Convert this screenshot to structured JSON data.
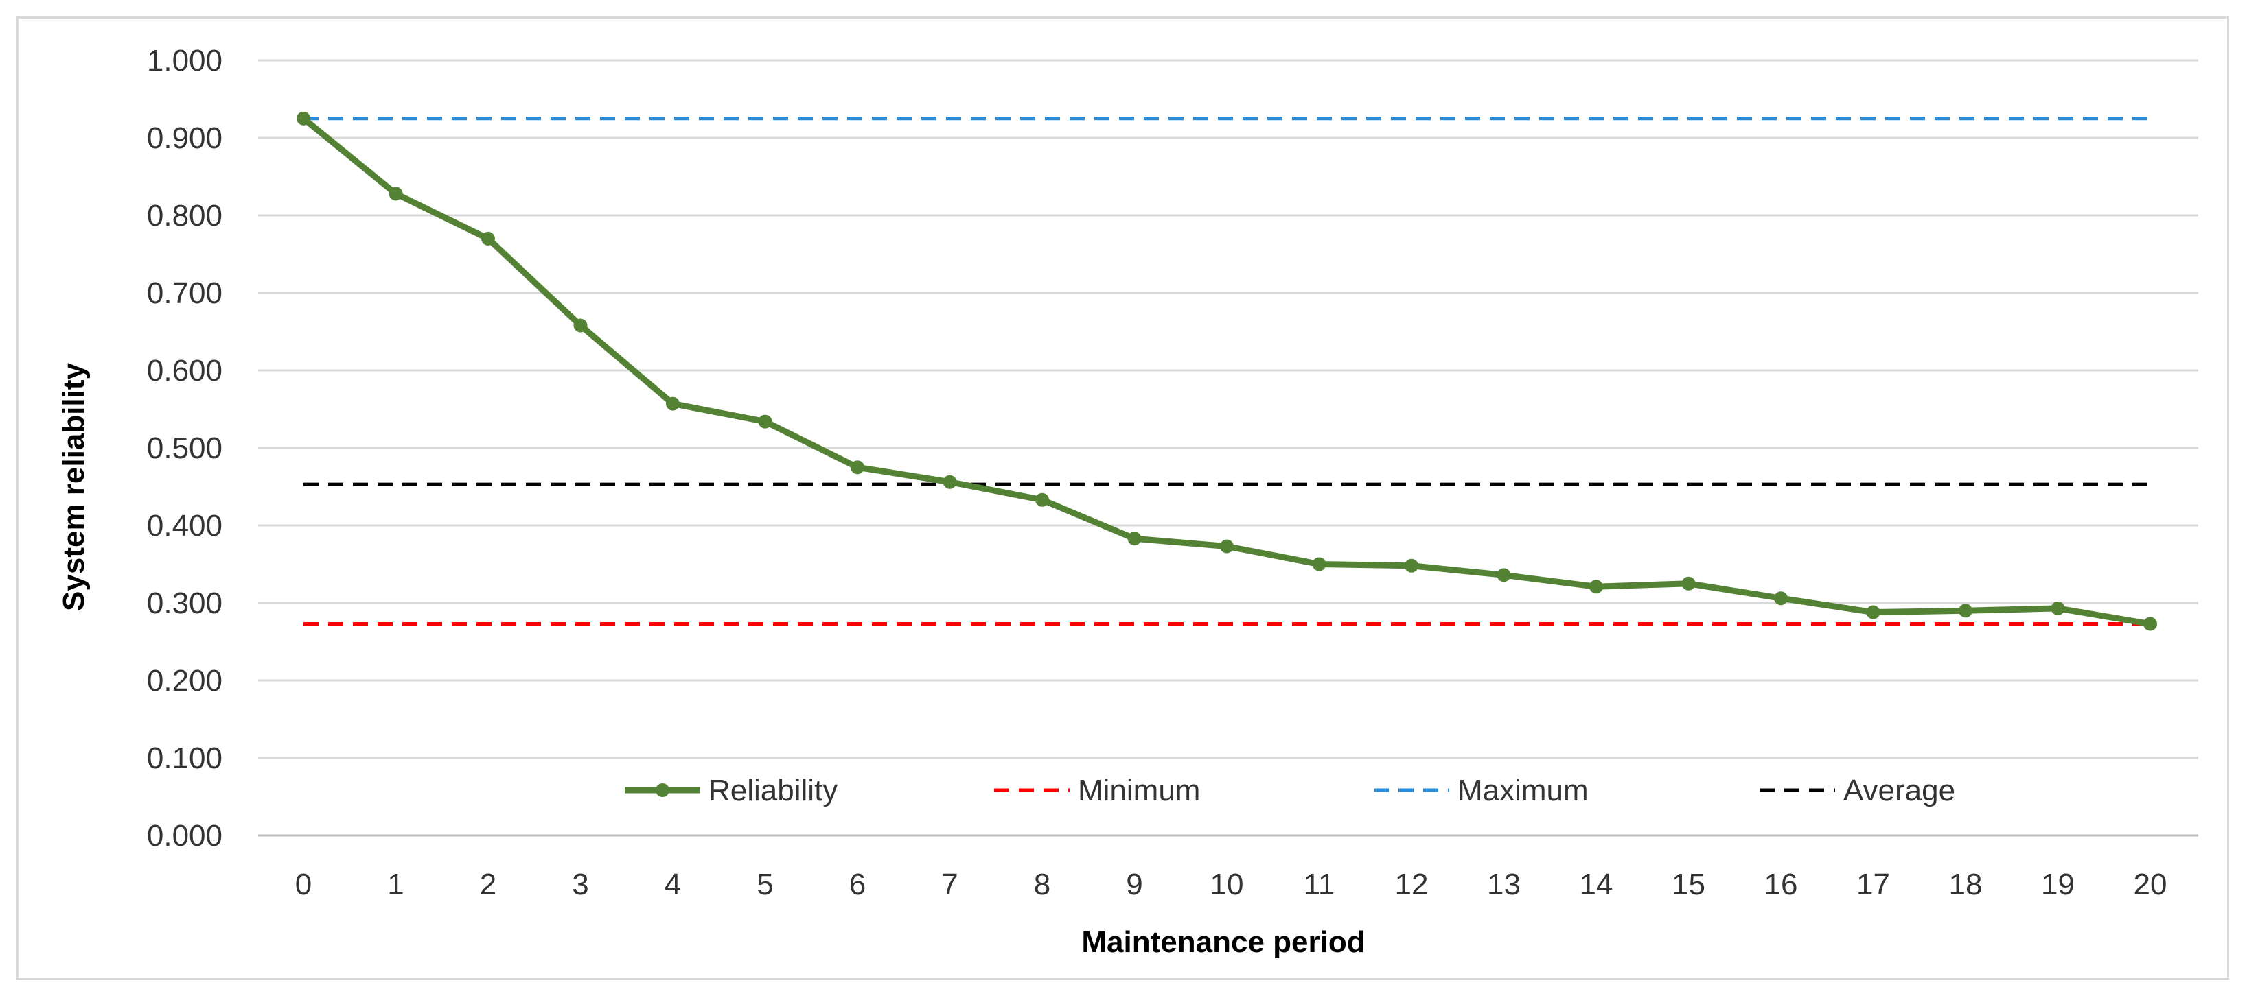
{
  "chart_data": {
    "type": "line",
    "title": "",
    "xlabel": "Maintenance period",
    "ylabel": "System reliability",
    "categories": [
      "0",
      "1",
      "2",
      "3",
      "4",
      "5",
      "6",
      "7",
      "8",
      "9",
      "10",
      "11",
      "12",
      "13",
      "14",
      "15",
      "16",
      "17",
      "18",
      "19",
      "20"
    ],
    "y_tick_labels": [
      "0.000",
      "0.100",
      "0.200",
      "0.300",
      "0.400",
      "0.500",
      "0.600",
      "0.700",
      "0.800",
      "0.900",
      "1.000"
    ],
    "ylim": [
      0,
      1
    ],
    "grid": true,
    "legend_position": "bottom-inside",
    "series": [
      {
        "name": "Reliability",
        "style": "solid-with-markers",
        "color": "#548235",
        "values": [
          0.925,
          0.828,
          0.77,
          0.658,
          0.557,
          0.534,
          0.475,
          0.456,
          0.433,
          0.383,
          0.373,
          0.35,
          0.348,
          0.336,
          0.321,
          0.325,
          0.306,
          0.288,
          0.29,
          0.293,
          0.273
        ]
      },
      {
        "name": "Minimum",
        "style": "dashed",
        "color": "#ff0000",
        "value": 0.273
      },
      {
        "name": "Maximum",
        "style": "dashed",
        "color": "#2e8bd6",
        "value": 0.925
      },
      {
        "name": "Average",
        "style": "dashed",
        "color": "#000000",
        "value": 0.453
      }
    ]
  }
}
